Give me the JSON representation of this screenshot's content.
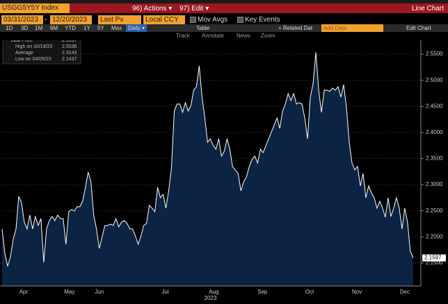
{
  "toolbar": {
    "ticker": "USGG5Y5Y Index",
    "actions": "96) Actions ▾",
    "edit": "97) Edit ▾",
    "view": "Line Chart"
  },
  "controls": {
    "start_date": "03/31/2023",
    "date_sep": "-",
    "end_date": "12/20/2023",
    "field": "Last Px",
    "currency": "Local CCY",
    "mov_avgs": "Mov Avgs",
    "key_events": "Key Events"
  },
  "periods": [
    "1D",
    "3D",
    "1M",
    "6M",
    "YTD",
    "1Y",
    "5Y",
    "Max"
  ],
  "frequency": "Daily ▾",
  "table": "Table",
  "related": "+ Related Dat",
  "add_data": "Add Data",
  "edit_chart": "Edit Chart",
  "tools": [
    "Track",
    "Annotate",
    "News",
    "Zoom"
  ],
  "chart_data": {
    "type": "line",
    "x_label": "2023",
    "series": [
      {
        "name": "Last Price",
        "color": "#ffffff",
        "fill": "#0d2647",
        "values": [
          2.2152,
          2.1686,
          2.1437,
          2.162,
          2.1952,
          2.2152,
          2.2777,
          2.2657,
          2.2285,
          2.2152,
          2.2418,
          2.2152,
          2.2391,
          2.2218,
          2.2351,
          2.1513,
          2.2152,
          2.2311,
          2.2391,
          2.2311,
          2.2418,
          2.2351,
          2.2351,
          2.1859,
          2.2484,
          2.2524,
          2.2497,
          2.2577,
          2.2577,
          2.2684,
          2.2949,
          2.3242,
          2.3056,
          2.2418,
          2.2152,
          2.1779,
          2.1992,
          2.2218,
          2.2218,
          2.2245,
          2.2218,
          2.2351,
          2.2191,
          2.2285,
          2.2311,
          2.2258,
          2.2152,
          2.2152,
          2.2019,
          2.1859,
          2.2019,
          2.2218,
          2.2258,
          2.2604,
          2.2551,
          2.2484,
          2.2949,
          2.275,
          2.2816,
          2.2551,
          2.2883,
          2.3322,
          2.4412,
          2.4545,
          2.4545,
          2.4386,
          2.4572,
          2.4412,
          2.4519,
          2.4811,
          2.4878,
          2.5277,
          2.4678,
          2.4279,
          2.3814,
          2.388,
          2.3747,
          2.3681,
          2.388,
          2.3548,
          2.3641,
          2.388,
          2.3681,
          2.3348,
          2.3282,
          2.3215,
          2.2883,
          2.3056,
          2.3149,
          2.3348,
          2.3481,
          2.3548,
          2.3415,
          2.3681,
          2.3614,
          2.3747,
          2.388,
          2.4013,
          2.4146,
          2.4279,
          2.408,
          2.4412,
          2.4545,
          2.4745,
          2.4612,
          2.4745,
          2.4545,
          2.4572,
          2.4545,
          2.4279,
          2.388,
          2.4678,
          2.4944,
          2.5536,
          2.4811,
          2.4386,
          2.4811,
          2.4811,
          2.4785,
          2.4851,
          2.4811,
          2.4878,
          2.4678,
          2.4918,
          2.4479,
          2.3814,
          2.3415,
          2.3282,
          2.3348,
          2.2976,
          2.3215,
          2.275,
          2.2976,
          2.2843,
          2.275,
          2.2551,
          2.2684,
          2.2551,
          2.2378,
          2.275,
          2.2391,
          2.2551,
          2.275,
          2.2551,
          2.2152,
          2.2551,
          2.2285,
          2.1726,
          2.1597
        ]
      }
    ],
    "stats": [
      {
        "label": "High on 10/19/23",
        "value": 2.5536
      },
      {
        "label": "Average",
        "value": 2.3143
      },
      {
        "label": "Low on 04/05/23",
        "value": 2.1437
      }
    ],
    "xlim": [
      -0.75,
      150.8
    ],
    "xticks": [
      {
        "value": 7.75,
        "label": "Apr"
      },
      {
        "value": 24.25,
        "label": "May"
      },
      {
        "value": 35,
        "label": "Jun"
      },
      {
        "value": 58.75,
        "label": "Jul"
      },
      {
        "value": 76.25,
        "label": "Aug"
      },
      {
        "value": 93.75,
        "label": "Sep"
      },
      {
        "value": 110.75,
        "label": "Oct"
      },
      {
        "value": 127.75,
        "label": "Nov"
      },
      {
        "value": 145,
        "label": "Dec"
      }
    ],
    "ylim": [
      2.106,
      2.578
    ],
    "yticks": [
      {
        "value": 2.15,
        "label": "2.1500"
      },
      {
        "value": 2.2,
        "label": "2.2000"
      },
      {
        "value": 2.25,
        "label": "2.2500"
      },
      {
        "value": 2.3,
        "label": "2.3000"
      },
      {
        "value": 2.35,
        "label": "2.3500"
      },
      {
        "value": 2.4,
        "label": "2.4000"
      },
      {
        "value": 2.45,
        "label": "2.4500"
      },
      {
        "value": 2.5,
        "label": "2.5000"
      },
      {
        "value": 2.55,
        "label": "2.5500"
      }
    ],
    "grid": true
  }
}
